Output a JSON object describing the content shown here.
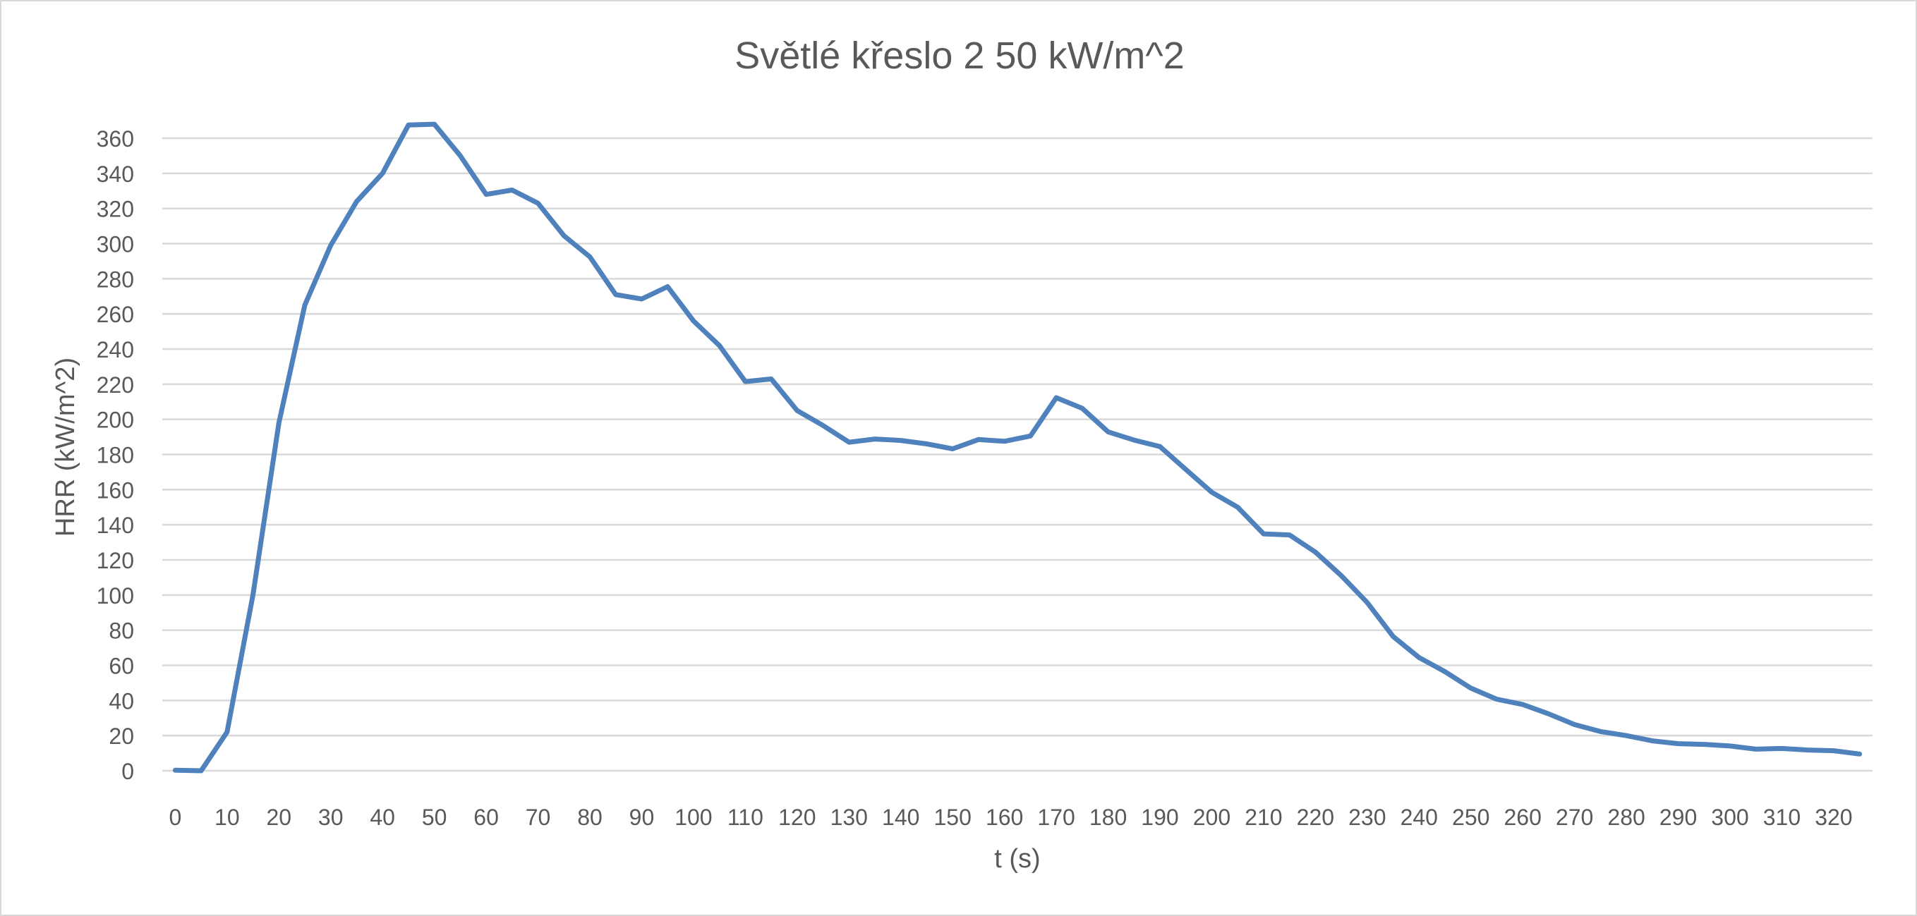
{
  "chart_data": {
    "type": "line",
    "title": "Světlé křeslo 2 50 kW/m^2",
    "xlabel": "t (s)",
    "ylabel": "HRR (kW/m^2)",
    "ylim": [
      0,
      360
    ],
    "y_ticks": [
      "0",
      "20",
      "40",
      "60",
      "80",
      "100",
      "120",
      "140",
      "160",
      "180",
      "200",
      "220",
      "240",
      "260",
      "280",
      "300",
      "320",
      "340",
      "360"
    ],
    "x_tick_labels": [
      "0",
      "10",
      "20",
      "30",
      "40",
      "50",
      "60",
      "70",
      "80",
      "90",
      "100",
      "110",
      "120",
      "130",
      "140",
      "150",
      "160",
      "170",
      "180",
      "190",
      "200",
      "210",
      "220",
      "230",
      "240",
      "250",
      "260",
      "270",
      "280",
      "290",
      "300",
      "310",
      "320"
    ],
    "grid": true,
    "legend": "none",
    "x": [
      0,
      5,
      10,
      15,
      20,
      25,
      30,
      35,
      40,
      45,
      50,
      55,
      60,
      65,
      70,
      75,
      80,
      85,
      90,
      95,
      100,
      105,
      110,
      115,
      120,
      125,
      130,
      135,
      140,
      145,
      150,
      155,
      160,
      165,
      170,
      175,
      180,
      185,
      190,
      195,
      200,
      205,
      210,
      215,
      220,
      225,
      230,
      235,
      240,
      245,
      250,
      255,
      260,
      265,
      270,
      275,
      280,
      285,
      290,
      295,
      300,
      305,
      310,
      315,
      320,
      325
    ],
    "series": [
      {
        "name": "HRR",
        "color": "#4f81bd",
        "values": [
          0.3,
          0,
          22,
          100,
          198,
          265,
          299,
          324,
          340,
          367.5,
          368,
          350,
          328,
          330.5,
          323,
          304.5,
          292.5,
          271,
          268.5,
          275.5,
          256,
          242,
          221.5,
          223,
          205,
          196.5,
          187,
          188.8,
          188,
          186,
          183.2,
          188.5,
          187.5,
          190.5,
          212.3,
          206.3,
          192.9,
          188.2,
          184.5,
          171.5,
          158.5,
          150,
          134.8,
          134.2,
          124.4,
          111,
          95.7,
          76.4,
          64.4,
          56.4,
          47,
          40.7,
          37.7,
          32.4,
          26.3,
          22.3,
          20,
          17,
          15.4,
          15,
          14.1,
          12.3,
          12.7,
          11.8,
          11.4,
          9.5
        ]
      }
    ]
  },
  "colors": {
    "gridline": "#d9d9d9",
    "text": "#595959",
    "border": "#d9d9d9"
  }
}
